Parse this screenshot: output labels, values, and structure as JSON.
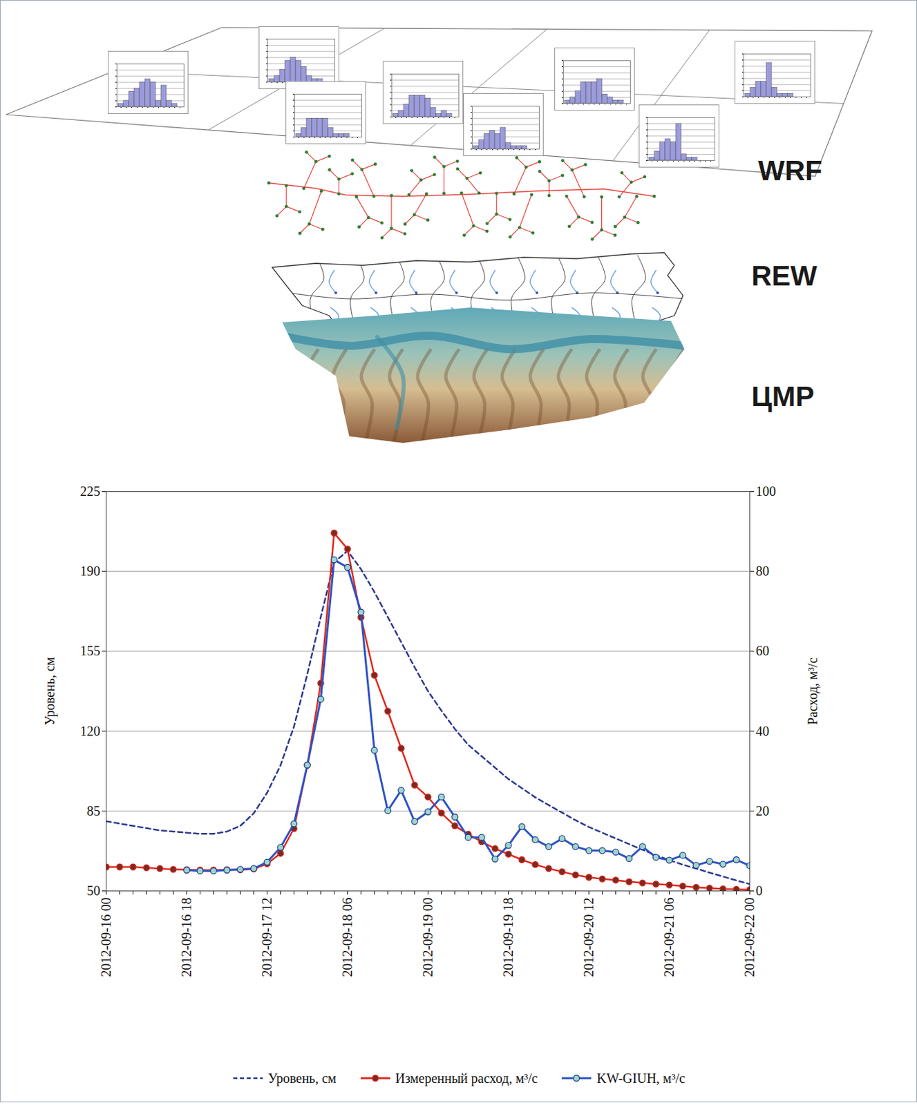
{
  "diagram": {
    "layers": [
      "WRF",
      "REW",
      "ЦМР"
    ],
    "histograms": {
      "type": "bar",
      "color": "#9c9cdc",
      "ylim": [
        0,
        14
      ],
      "yticks": [
        0,
        2,
        4,
        6,
        8,
        10,
        12,
        14
      ],
      "grid": true,
      "tick_labels": false,
      "panels": [
        [
          1,
          2,
          5,
          6,
          8,
          9,
          8,
          2,
          7,
          2,
          1,
          0
        ],
        [
          1,
          2,
          4,
          7,
          8,
          7,
          5,
          2,
          1,
          1,
          0,
          0
        ],
        [
          1,
          2,
          4,
          7,
          7,
          7,
          6,
          3,
          1,
          2,
          1,
          0
        ],
        [
          1,
          3,
          6,
          6,
          6,
          6,
          3,
          1,
          1,
          1,
          0,
          0
        ],
        [
          1,
          2,
          4,
          7,
          7,
          7,
          8,
          3,
          2,
          1,
          1,
          0
        ],
        [
          1,
          3,
          5,
          6,
          5,
          7,
          2,
          1,
          1,
          1,
          0,
          0
        ],
        [
          1,
          3,
          5,
          5,
          11,
          3,
          1,
          1,
          1,
          0,
          0,
          0
        ],
        [
          1,
          3,
          6,
          7,
          6,
          12,
          2,
          1,
          1,
          0,
          0,
          0
        ]
      ]
    }
  },
  "chart_data": {
    "type": "line",
    "categories": [
      "2012-09-16 00",
      null,
      null,
      null,
      null,
      null,
      "2012-09-16 18",
      null,
      null,
      null,
      null,
      null,
      "2012-09-17 12",
      null,
      null,
      null,
      null,
      null,
      "2012-09-18 06",
      null,
      null,
      null,
      null,
      null,
      "2012-09-19 00",
      null,
      null,
      null,
      null,
      null,
      "2012-09-19 18",
      null,
      null,
      null,
      null,
      null,
      "2012-09-20 12",
      null,
      null,
      null,
      null,
      null,
      "2012-09-21 06",
      null,
      null,
      null,
      null,
      null,
      "2012-09-22 00"
    ],
    "ylabel": "Уровень, см",
    "y2label": "Расход, м³/с",
    "ylim": [
      50,
      225
    ],
    "yticks": [
      50,
      85,
      120,
      155,
      190,
      225
    ],
    "y2lim": [
      0,
      100
    ],
    "y2ticks": [
      0,
      20,
      40,
      60,
      80,
      100
    ],
    "grid": true,
    "legend": "bottom",
    "series": [
      {
        "name": "Уровень, см",
        "color": "#2b3990",
        "line_style": "dashed",
        "values": [
          80.5,
          79.5,
          78.5,
          77.5,
          76.5,
          76,
          75.5,
          75,
          75,
          76,
          78.5,
          84,
          93,
          105,
          122,
          145,
          170,
          194,
          199,
          191,
          181,
          170,
          159,
          148,
          137.5,
          129,
          121,
          114,
          109,
          104,
          99,
          95,
          91,
          87.6,
          84.3,
          81,
          78,
          75.5,
          73,
          70.5,
          68,
          65.7,
          63.5,
          61.5,
          59.8,
          58,
          56.3,
          54.6,
          53
        ]
      },
      {
        "name": "Измеренный расход, м³/с",
        "color": "#e0281b",
        "marker": "circle",
        "axis": "y2",
        "values": [
          6.0,
          6.0,
          6.0,
          5.8,
          5.6,
          5.4,
          5.3,
          5.2,
          5.2,
          5.3,
          5.3,
          5.5,
          6.8,
          9.4,
          15.6,
          31.5,
          52,
          89.6,
          85.6,
          68.5,
          54,
          45,
          35.7,
          26.5,
          23.5,
          19.5,
          16.3,
          14.2,
          12.3,
          10.6,
          9.2,
          7.8,
          6.6,
          5.6,
          4.8,
          4.0,
          3.4,
          3.0,
          2.7,
          2.3,
          2.0,
          1.7,
          1.5,
          1.2,
          0.9,
          0.7,
          0.5,
          0.4,
          0.3
        ]
      },
      {
        "name": "KW-GIUH, м³/с",
        "color": "#2f52c4",
        "marker": "circle",
        "axis": "y2",
        "values": [
          null,
          null,
          null,
          null,
          null,
          null,
          5.2,
          5.0,
          5.0,
          5.2,
          5.4,
          5.6,
          7.2,
          10.9,
          16.8,
          31.5,
          48,
          82.9,
          81,
          69.8,
          35.2,
          20.1,
          25.2,
          17.4,
          19.8,
          23.5,
          18.5,
          13.4,
          13.4,
          8,
          11.4,
          16.1,
          12.8,
          11.1,
          13.1,
          11.1,
          10.1,
          10.1,
          9.7,
          8.1,
          11.1,
          8.4,
          7.7,
          8.9,
          6.4,
          7.4,
          6.7,
          7.8,
          6.3
        ]
      }
    ]
  }
}
